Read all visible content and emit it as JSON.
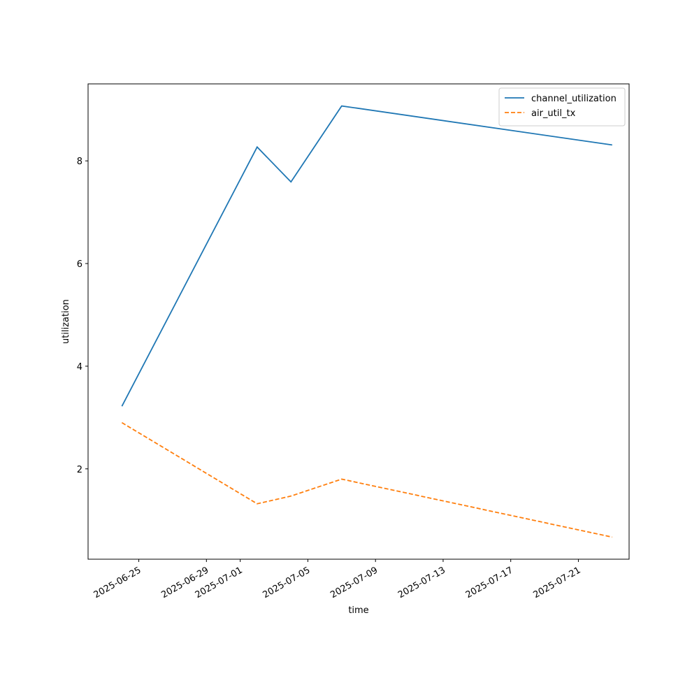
{
  "chart_data": {
    "type": "line",
    "x_label": "time",
    "y_label": "utilization",
    "x": [
      "2025-06-24",
      "2025-07-02",
      "2025-07-04",
      "2025-07-07",
      "2025-07-23"
    ],
    "series": [
      {
        "name": "channel_utilization",
        "color": "#1f77b4",
        "linestyle": "solid",
        "values": [
          3.22,
          8.27,
          7.59,
          9.07,
          8.31
        ]
      },
      {
        "name": "air_util_tx",
        "color": "#ff7f0e",
        "linestyle": "dashed",
        "values": [
          2.9,
          1.32,
          1.47,
          1.8,
          0.67
        ]
      }
    ],
    "xlim": [
      "2025-06-22",
      "2025-07-24"
    ],
    "xticks": [
      "2025-06-25",
      "2025-06-29",
      "2025-07-01",
      "2025-07-05",
      "2025-07-09",
      "2025-07-13",
      "2025-07-17",
      "2025-07-21"
    ],
    "ylim": [
      0.24,
      9.5
    ],
    "yticks": [
      2,
      4,
      6,
      8
    ],
    "legend": "upper right"
  }
}
